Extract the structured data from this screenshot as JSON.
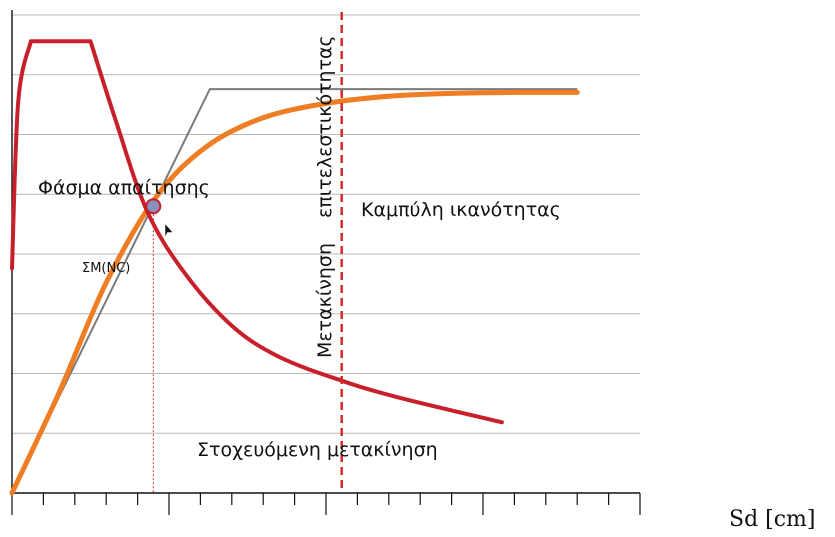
{
  "chart_data": {
    "type": "line",
    "title": "",
    "xlabel": "Sd [cm]",
    "ylabel": "",
    "grid": true,
    "tick_labels": false,
    "colors": {
      "demand_spectrum": "#c8202a",
      "capacity_curve": "#ee7d24",
      "bilinear": "#7a7a7a",
      "limit_line": "#d42a2a",
      "grid": "#b9b9b9",
      "axis": "#111111",
      "point_fill": "#8a8ec0",
      "point_edge": "#c8202a"
    },
    "labels": {
      "demand": "Φάσμα απαίτησης",
      "capacity": "Καμπύλη ικανότητας",
      "limit_line_1": "Μετακίνηση",
      "limit_line_2": "επιτελεστικότητας",
      "target": "Στοχευόμενη μετακίνηση",
      "point": "ΣΜ(NC)"
    },
    "demand_spectrum": [
      [
        0,
        0.47
      ],
      [
        0.2,
        0.82
      ],
      [
        0.6,
        0.945
      ],
      [
        2.5,
        0.945
      ],
      [
        3.3,
        0.78
      ],
      [
        4.3,
        0.59
      ],
      [
        5.5,
        0.46
      ],
      [
        7.0,
        0.35
      ],
      [
        8.5,
        0.285
      ],
      [
        10.5,
        0.235
      ],
      [
        12.3,
        0.2
      ],
      [
        15.6,
        0.148
      ]
    ],
    "capacity_curve": [
      [
        0,
        0
      ],
      [
        1.5,
        0.21
      ],
      [
        3.0,
        0.44
      ],
      [
        4.6,
        0.62
      ],
      [
        6.2,
        0.725
      ],
      [
        8.0,
        0.785
      ],
      [
        10.0,
        0.815
      ],
      [
        12.0,
        0.83
      ],
      [
        14.0,
        0.836
      ],
      [
        16.0,
        0.838
      ],
      [
        18.0,
        0.838
      ]
    ],
    "bilinear": [
      [
        0,
        0
      ],
      [
        6.3,
        0.845
      ],
      [
        18.0,
        0.845
      ]
    ],
    "performance_point": [
      4.5,
      0.6
    ],
    "target_displacement": 4.5,
    "limit_displacement": 10.5
  }
}
